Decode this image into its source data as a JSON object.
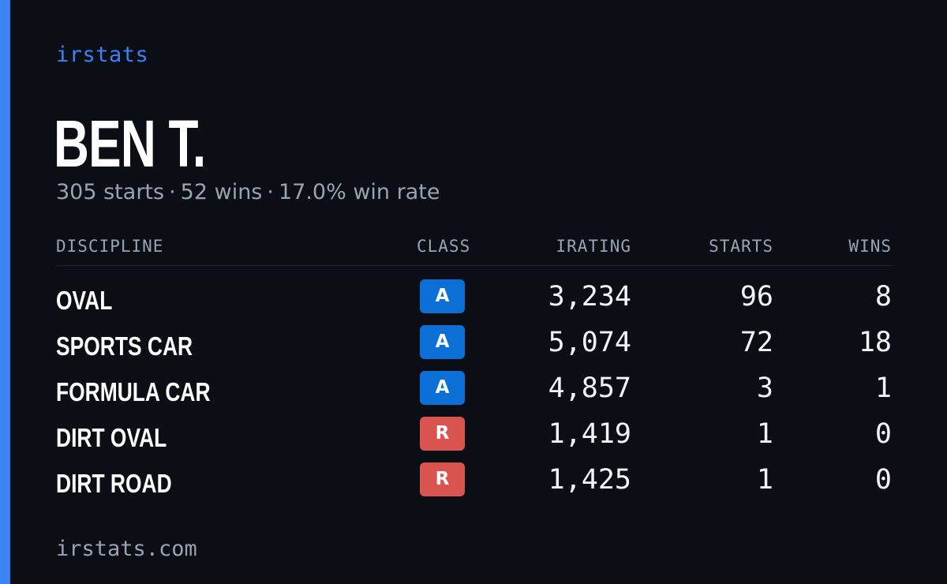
{
  "brand": "irstats",
  "driver": {
    "name": "BEN T.",
    "starts_text": "305 starts",
    "wins_text": "52 wins",
    "rate_text": "17.0% win rate",
    "separator": "·"
  },
  "table": {
    "headers": {
      "discipline": "DISCIPLINE",
      "class": "CLASS",
      "irating": "IRATING",
      "starts": "STARTS",
      "wins": "WINS"
    },
    "rows": [
      {
        "discipline": "OVAL",
        "class": "A",
        "irating": "3,234",
        "starts": "96",
        "wins": "8"
      },
      {
        "discipline": "SPORTS CAR",
        "class": "A",
        "irating": "5,074",
        "starts": "72",
        "wins": "18"
      },
      {
        "discipline": "FORMULA CAR",
        "class": "A",
        "irating": "4,857",
        "starts": "3",
        "wins": "1"
      },
      {
        "discipline": "DIRT OVAL",
        "class": "R",
        "irating": "1,419",
        "starts": "1",
        "wins": "0"
      },
      {
        "discipline": "DIRT ROAD",
        "class": "R",
        "irating": "1,425",
        "starts": "1",
        "wins": "0"
      }
    ]
  },
  "footer": "irstats.com",
  "colors": {
    "accent": "#3b82f6",
    "class_A": "#0b6fd6",
    "class_R": "#d9534f",
    "background": "#0b0e15"
  }
}
